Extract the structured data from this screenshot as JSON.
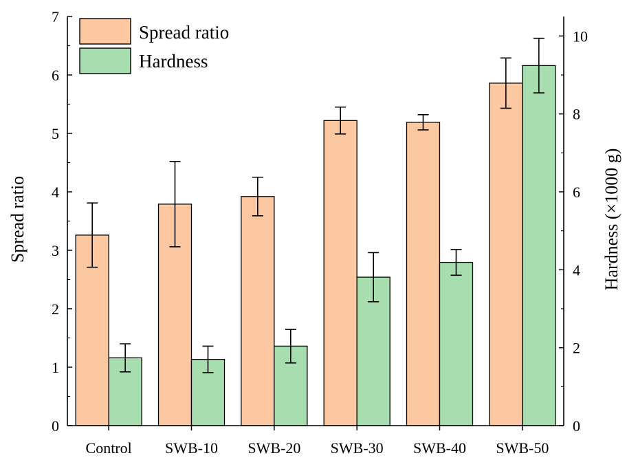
{
  "chart_data": {
    "type": "bar",
    "categories": [
      "Control",
      "SWB-10",
      "SWB-20",
      "SWB-30",
      "SWB-40",
      "SWB-50"
    ],
    "xlabel": "",
    "ylabel": "Spread ratio",
    "y2label": "Hardness (×1000 g)",
    "ylim": [
      0,
      7
    ],
    "y2lim": [
      0,
      10.5
    ],
    "yticks": [
      0,
      1,
      2,
      3,
      4,
      5,
      6,
      7
    ],
    "y2ticks": [
      0,
      2,
      4,
      6,
      8,
      10
    ],
    "grid": false,
    "legend_position": "top-left",
    "series": [
      {
        "name": "Spread ratio",
        "axis": "left",
        "color": "#FBC8A1",
        "values": [
          3.26,
          3.79,
          3.92,
          5.22,
          5.19,
          5.86
        ],
        "errors": [
          0.55,
          0.73,
          0.33,
          0.23,
          0.13,
          0.43
        ]
      },
      {
        "name": "Hardness",
        "axis": "right",
        "color": "#A8DDB0",
        "values": [
          1.74,
          1.7,
          2.04,
          3.81,
          4.19,
          9.24
        ],
        "errors": [
          0.36,
          0.34,
          0.43,
          0.63,
          0.33,
          0.7
        ]
      }
    ]
  }
}
